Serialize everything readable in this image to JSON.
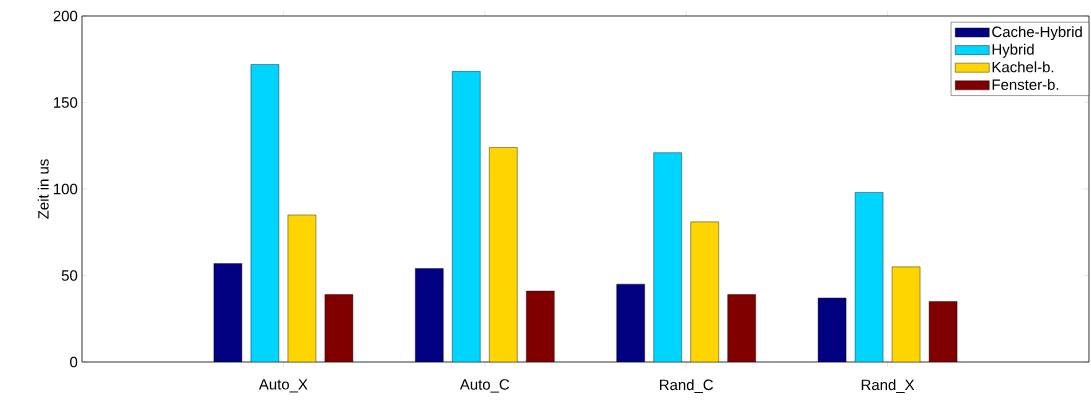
{
  "chart_data": {
    "type": "bar",
    "ylabel": "Zeit in us",
    "categories": [
      "Auto_X",
      "Auto_C",
      "Rand_C",
      "Rand_X"
    ],
    "series": [
      {
        "name": "Cache-Hybrid",
        "color": "#000080",
        "values": [
          57,
          54,
          45,
          37
        ]
      },
      {
        "name": "Hybrid",
        "color": "#00d5ff",
        "values": [
          172,
          168,
          121,
          98
        ]
      },
      {
        "name": "Kachel-b.",
        "color": "#ffd500",
        "values": [
          85,
          124,
          81,
          55
        ]
      },
      {
        "name": "Fenster-b.",
        "color": "#800000",
        "values": [
          39,
          41,
          39,
          35
        ]
      }
    ],
    "ylim": [
      0,
      200
    ],
    "yticks": [
      0,
      50,
      100,
      150,
      200
    ],
    "legend": "top right"
  }
}
